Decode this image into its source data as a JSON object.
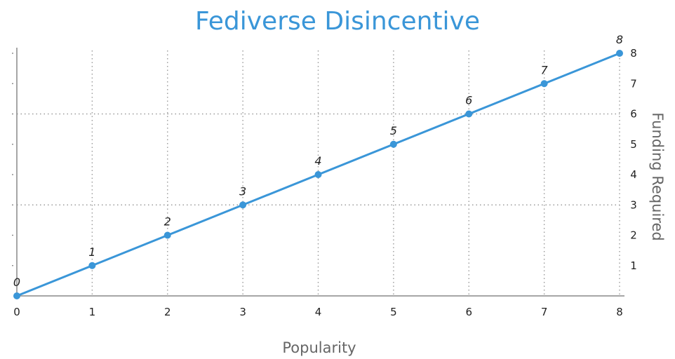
{
  "chart_data": {
    "type": "line",
    "title": "Fediverse Disincentive",
    "xlabel": "Popularity",
    "ylabel": "Funding Required",
    "xlim": [
      0,
      8
    ],
    "ylim": [
      0,
      8
    ],
    "x": [
      0,
      1,
      2,
      3,
      4,
      5,
      6,
      7,
      8
    ],
    "series": [
      {
        "values": [
          0,
          1,
          2,
          3,
          4,
          5,
          6,
          7,
          8
        ]
      }
    ],
    "data_labels": [
      "0",
      "1",
      "2",
      "3",
      "4",
      "5",
      "6",
      "7",
      "8"
    ],
    "x_ticks": [
      "0",
      "1",
      "2",
      "3",
      "4",
      "5",
      "6",
      "7",
      "8"
    ],
    "y_ticks": [
      "1",
      "2",
      "3",
      "4",
      "5",
      "6",
      "7",
      "8"
    ],
    "y_axis_side": "right",
    "grid": true,
    "line_color": "#3a96d8"
  }
}
